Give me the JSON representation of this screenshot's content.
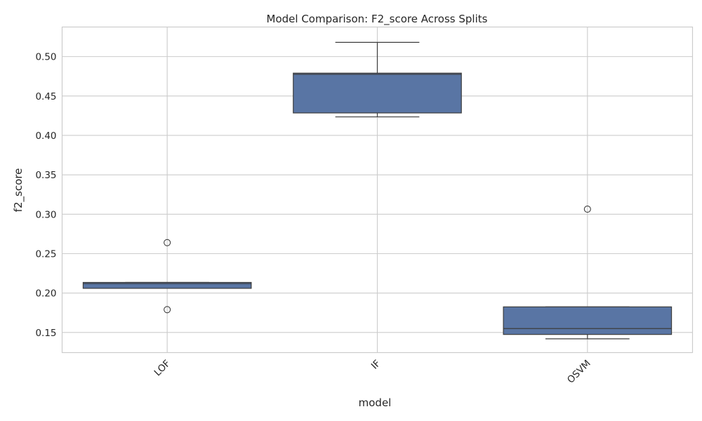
{
  "chart_data": {
    "type": "box",
    "title": "Model Comparison: F2_score Across Splits",
    "xlabel": "model",
    "ylabel": "f2_score",
    "categories": [
      "LOF",
      "IF",
      "OSVM"
    ],
    "y_ticks": [
      0.15,
      0.2,
      0.25,
      0.3,
      0.35,
      0.4,
      0.45,
      0.5
    ],
    "y_tick_labels": [
      "0.15",
      "0.20",
      "0.25",
      "0.30",
      "0.35",
      "0.40",
      "0.45",
      "0.50"
    ],
    "ylim": [
      0.1245,
      0.5375
    ],
    "grid": true,
    "box_color": "#5975a4",
    "line_color": "#3d3d3d",
    "boxes": [
      {
        "category": "LOF",
        "whisker_low": 0.206,
        "q1": 0.206,
        "median": 0.212,
        "q3": 0.2135,
        "whisker_high": 0.2135,
        "outliers": [
          0.264,
          0.179
        ]
      },
      {
        "category": "IF",
        "whisker_low": 0.4235,
        "q1": 0.4285,
        "median": 0.4775,
        "q3": 0.479,
        "whisker_high": 0.518,
        "outliers": []
      },
      {
        "category": "OSVM",
        "whisker_low": 0.142,
        "q1": 0.1475,
        "median": 0.155,
        "q3": 0.1825,
        "whisker_high": 0.1825,
        "outliers": [
          0.3065
        ]
      }
    ]
  }
}
